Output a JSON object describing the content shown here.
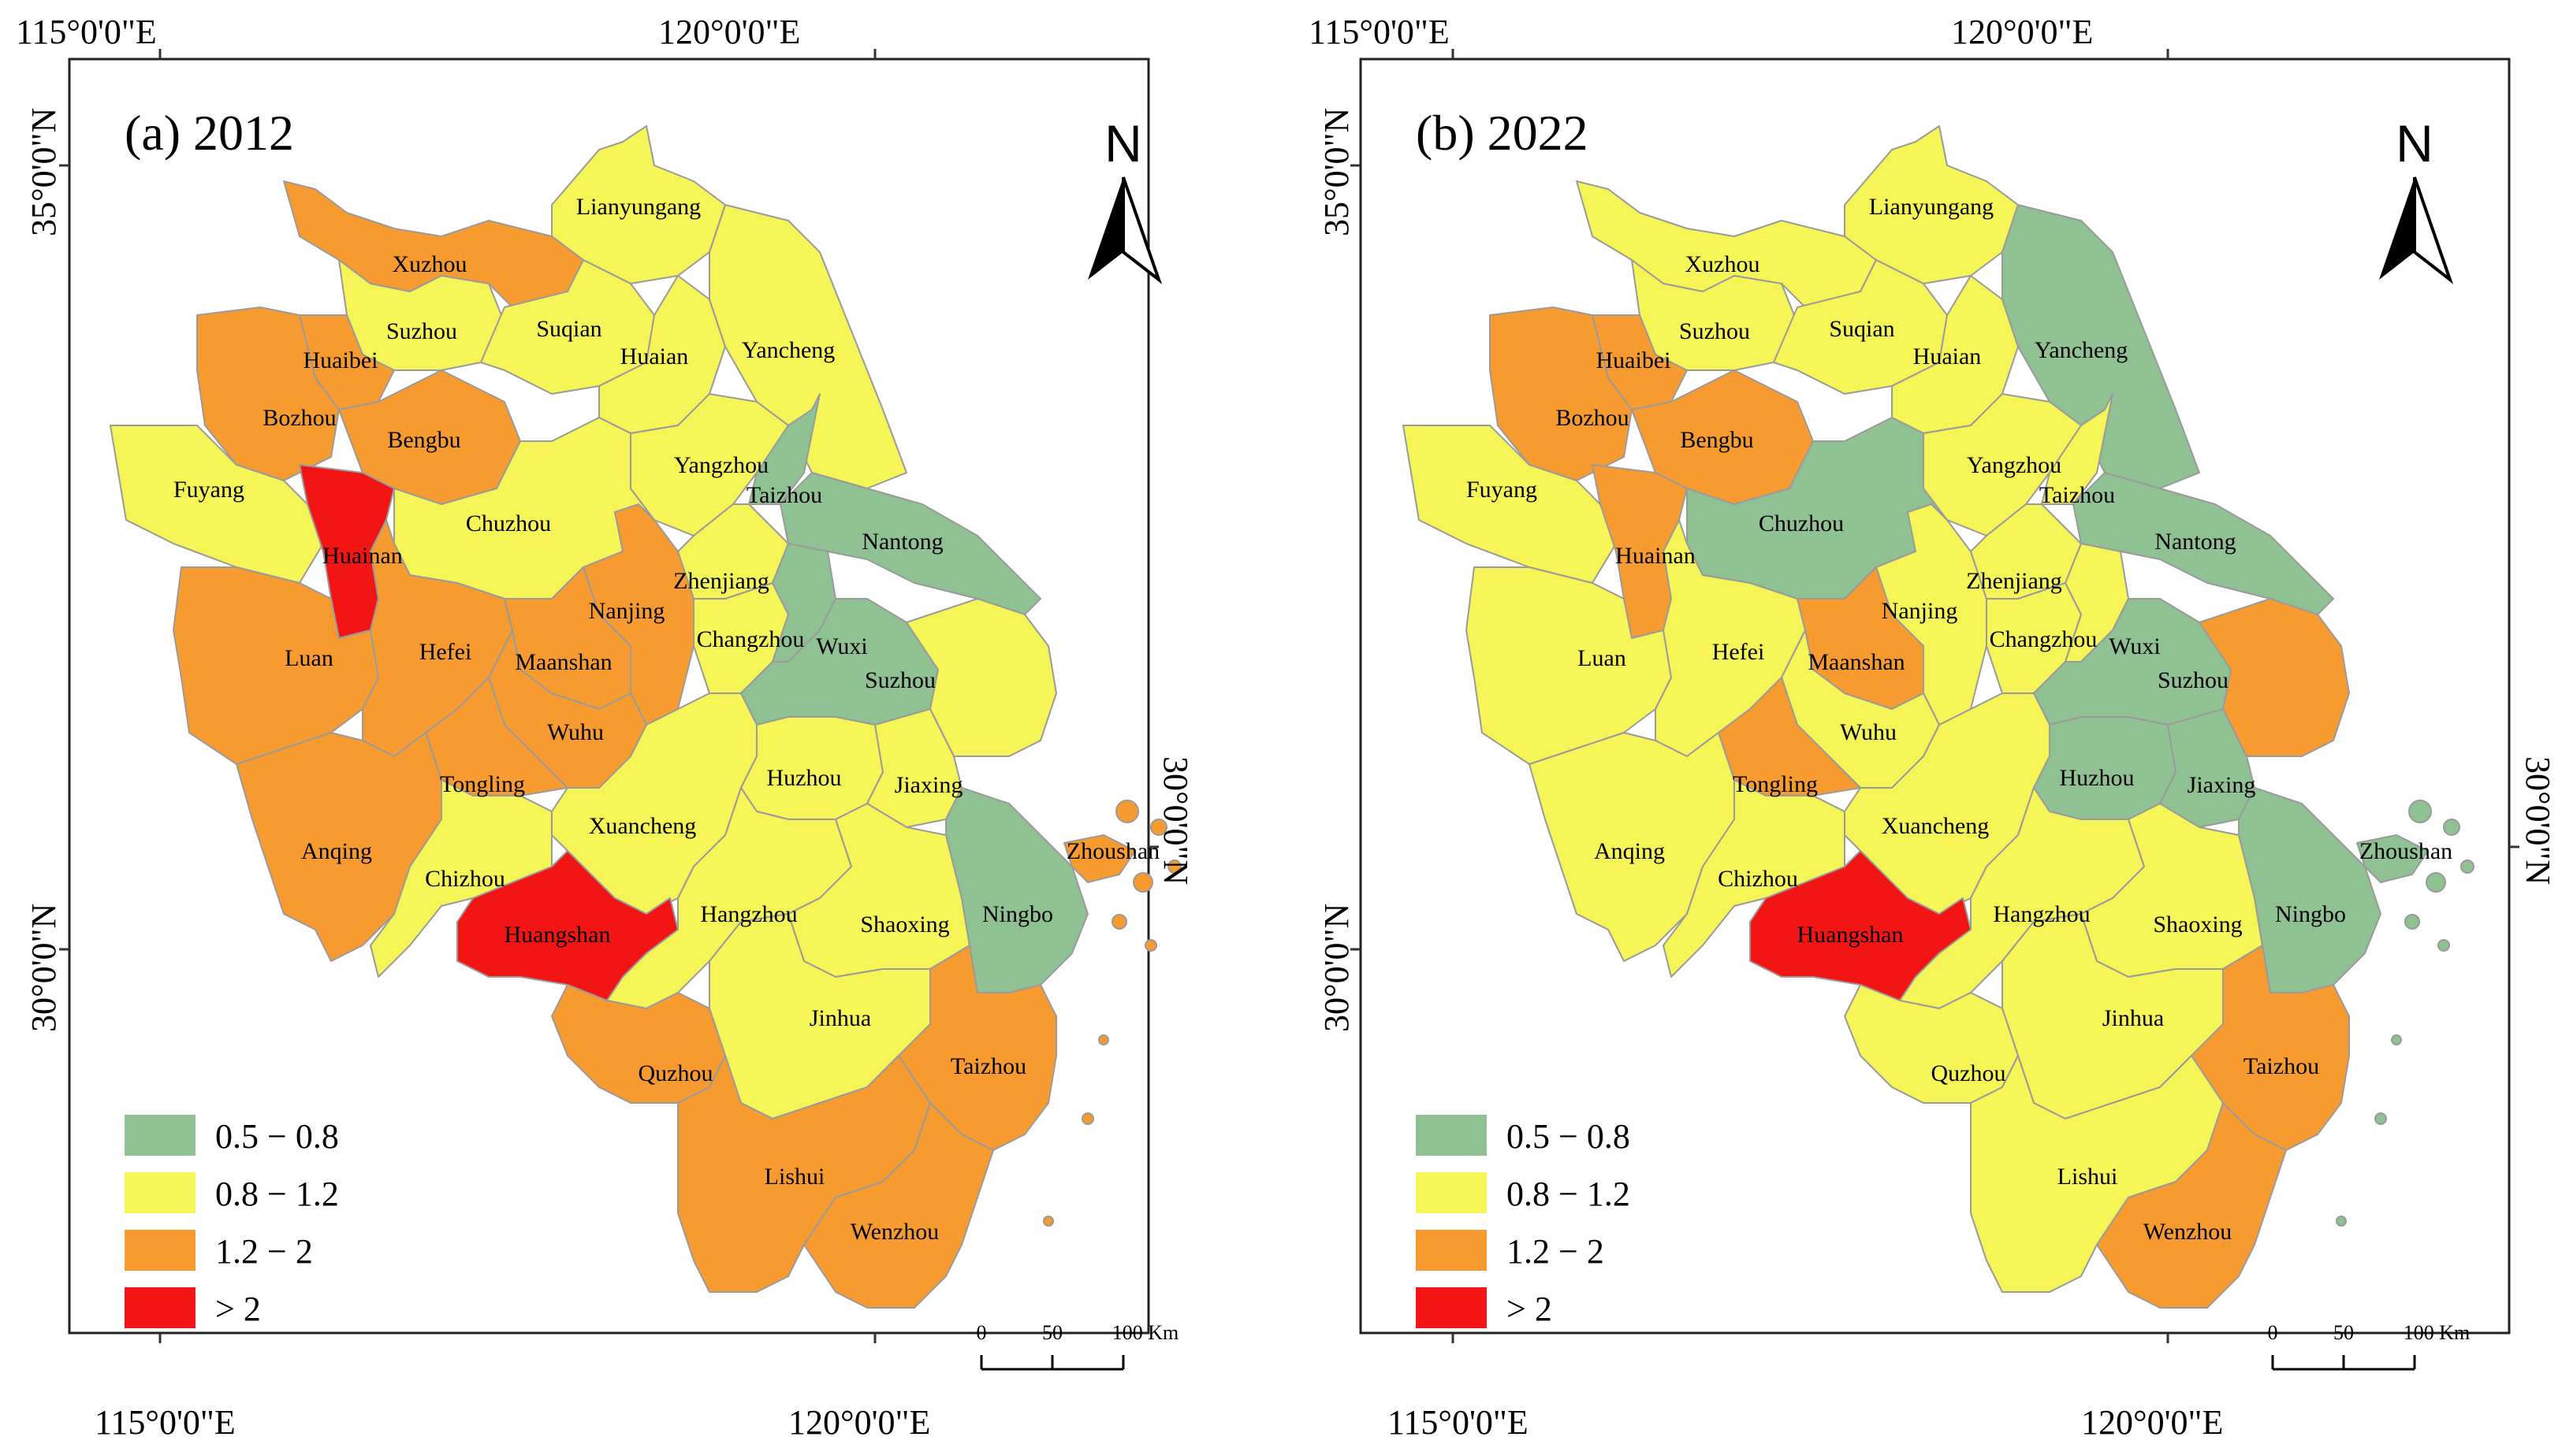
{
  "colors": {
    "low": "#8fc193",
    "mid": "#f5f557",
    "high": "#f79a2f",
    "vhigh": "#f31414"
  },
  "axes": {
    "lon_left": "115°0'0\"E",
    "lon_right": "120°0'0\"E",
    "lat_top": "35°0'0\"N",
    "lat_bottom": "30°0'0\"N"
  },
  "legend": [
    {
      "label": "0.5 − 0.8",
      "cls": "low"
    },
    {
      "label": "0.8 − 1.2",
      "cls": "mid"
    },
    {
      "label": "1.2 − 2",
      "cls": "high"
    },
    {
      "label": "> 2",
      "cls": "vhigh"
    }
  ],
  "north_label": "N",
  "scale": {
    "labels": [
      "0",
      "50",
      "100 Km"
    ]
  },
  "panels": [
    {
      "title": "(a)  2012",
      "cities": {
        "Lianyungang": "mid",
        "Xuzhou": "high",
        "Suzhou_n": "mid",
        "Suqian": "mid",
        "Huaian": "mid",
        "Yancheng": "mid",
        "Huaibei": "high",
        "Bozhou": "high",
        "Bengbu": "high",
        "Fuyang": "mid",
        "Huainan": "vhigh",
        "Chuzhou": "mid",
        "Yangzhou": "mid",
        "Taizhou_n": "low",
        "Nantong": "low",
        "Nanjing": "high",
        "Zhenjiang": "mid",
        "Changzhou": "mid",
        "Wuxi": "low",
        "Suzhou": "low",
        "Shanghai": "mid",
        "Luan": "high",
        "Hefei": "high",
        "Maanshan": "high",
        "Wuhu": "high",
        "Tongling": "high",
        "Anqing": "high",
        "Chizhou": "mid",
        "Xuancheng": "mid",
        "Huzhou": "mid",
        "Jiaxing": "mid",
        "Huangshan": "vhigh",
        "Hangzhou": "mid",
        "Shaoxing": "mid",
        "Ningbo": "low",
        "Zhoushan": "high",
        "Jinhua": "mid",
        "Quzhou": "high",
        "Taizhou_s": "high",
        "Lishui": "high",
        "Wenzhou": "high"
      }
    },
    {
      "title": "(b)  2022",
      "cities": {
        "Lianyungang": "mid",
        "Xuzhou": "mid",
        "Suzhou_n": "mid",
        "Suqian": "mid",
        "Huaian": "mid",
        "Yancheng": "low",
        "Huaibei": "high",
        "Bozhou": "high",
        "Bengbu": "high",
        "Fuyang": "mid",
        "Huainan": "high",
        "Chuzhou": "low",
        "Yangzhou": "mid",
        "Taizhou_n": "mid",
        "Nantong": "low",
        "Nanjing": "mid",
        "Zhenjiang": "mid",
        "Changzhou": "mid",
        "Wuxi": "mid",
        "Suzhou": "low",
        "Shanghai": "high",
        "Luan": "mid",
        "Hefei": "mid",
        "Maanshan": "high",
        "Wuhu": "mid",
        "Tongling": "high",
        "Anqing": "mid",
        "Chizhou": "mid",
        "Xuancheng": "mid",
        "Huzhou": "low",
        "Jiaxing": "low",
        "Huangshan": "vhigh",
        "Hangzhou": "mid",
        "Shaoxing": "mid",
        "Ningbo": "low",
        "Zhoushan": "low",
        "Jinhua": "mid",
        "Quzhou": "mid",
        "Taizhou_s": "high",
        "Lishui": "mid",
        "Wenzhou": "high"
      }
    }
  ],
  "labels": {
    "Lianyungang": "Lianyungang",
    "Xuzhou": "Xuzhou",
    "Suzhou_n": "Suzhou",
    "Suqian": "Suqian",
    "Huaian": "Huaian",
    "Yancheng": "Yancheng",
    "Huaibei": "Huaibei",
    "Bozhou": "Bozhou",
    "Bengbu": "Bengbu",
    "Fuyang": "Fuyang",
    "Huainan": "Huainan",
    "Chuzhou": "Chuzhou",
    "Yangzhou": "Yangzhou",
    "Taizhou_n": "Taizhou",
    "Nantong": "Nantong",
    "Nanjing": "Nanjing",
    "Zhenjiang": "Zhenjiang",
    "Changzhou": "Changzhou",
    "Wuxi": "Wuxi",
    "Suzhou": "Suzhou",
    "Luan": "Luan",
    "Hefei": "Hefei",
    "Maanshan": "Maanshan",
    "Wuhu": "Wuhu",
    "Tongling": "Tongling",
    "Anqing": "Anqing",
    "Chizhou": "Chizhou",
    "Xuancheng": "Xuancheng",
    "Huzhou": "Huzhou",
    "Jiaxing": "Jiaxing",
    "Huangshan": "Huangshan",
    "Hangzhou": "Hangzhou",
    "Shaoxing": "Shaoxing",
    "Ningbo": "Ningbo",
    "Zhoushan": "Zhoushan",
    "Jinhua": "Jinhua",
    "Quzhou": "Quzhou",
    "Taizhou_s": "Taizhou",
    "Lishui": "Lishui",
    "Wenzhou": "Wenzhou"
  }
}
